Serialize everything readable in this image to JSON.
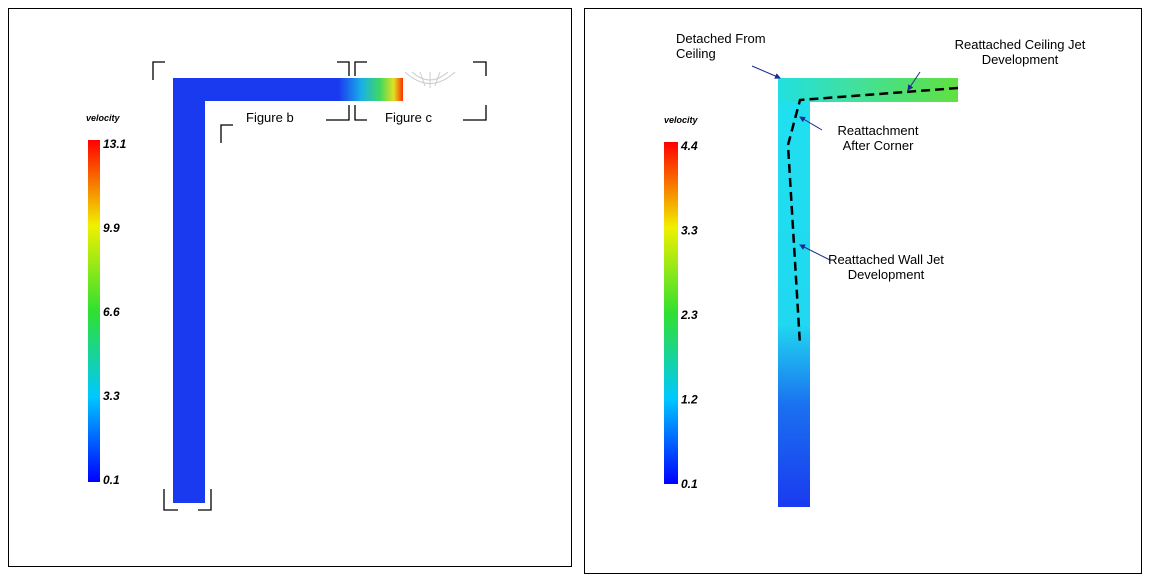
{
  "panels": [
    {
      "colorbar": {
        "label": "velocity",
        "ticks": [
          13.1,
          9.9,
          6.6,
          3.3,
          0.1
        ]
      },
      "labels": [
        "Figure b",
        "Figure c"
      ]
    },
    {
      "colorbar": {
        "label": "velocity",
        "ticks": [
          4.4,
          3.3,
          2.3,
          1.2,
          0.1
        ]
      },
      "annotations": [
        [
          "Detached From",
          "Ceiling"
        ],
        [
          "Reattached Ceiling Jet",
          "Development"
        ],
        [
          "Reattachment",
          "After Corner"
        ],
        [
          "Reattached Wall Jet",
          "Development"
        ]
      ]
    }
  ]
}
